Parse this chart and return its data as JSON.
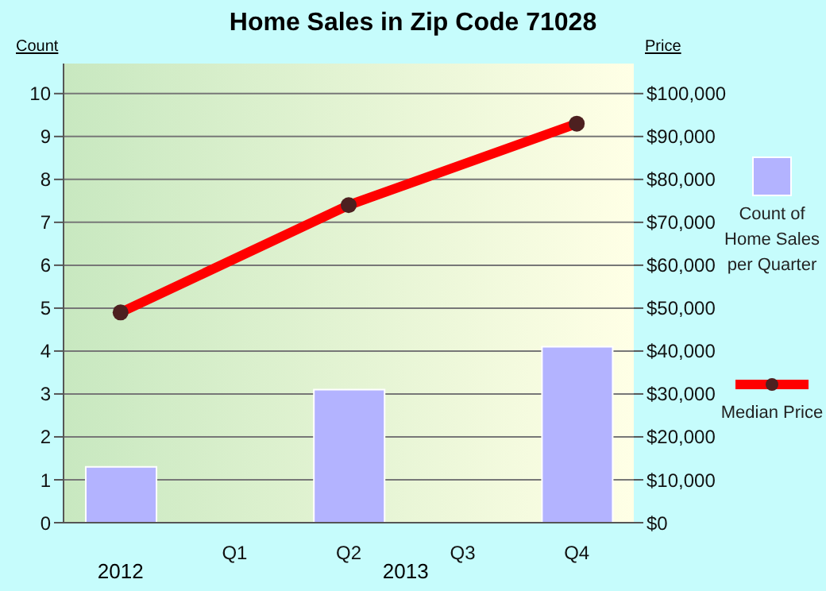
{
  "chart_data": {
    "type": "bar",
    "title": "Home Sales in Zip Code 71028",
    "ylabel": "Count",
    "y2label": "Price",
    "categories": [
      null,
      "Q1",
      "Q2",
      "Q3",
      "Q4"
    ],
    "annotations": [
      "2012",
      "2013"
    ],
    "series": [
      {
        "name": "Count of Home Sales per Quarter",
        "color": "#b3b3ff",
        "values": [
          1.3,
          null,
          3.1,
          null,
          4.1
        ]
      },
      {
        "name": "Median Price",
        "type": "line",
        "axis": "y2",
        "color": "#ff0000",
        "marker": "circle",
        "values": [
          49000,
          null,
          74000,
          null,
          93000
        ]
      }
    ],
    "ylim": [
      0,
      10.7
    ],
    "yticks": [
      0,
      1,
      2,
      3,
      4,
      5,
      6,
      7,
      8,
      9,
      10
    ],
    "y2lim": [
      0,
      107000
    ],
    "y2ticks": [
      {
        "value": 0,
        "label": "$0"
      },
      {
        "value": 10000,
        "label": "$10,000"
      },
      {
        "value": 20000,
        "label": "$20,000"
      },
      {
        "value": 30000,
        "label": "$30,000"
      },
      {
        "value": 40000,
        "label": "$40,000"
      },
      {
        "value": 50000,
        "label": "$50,000"
      },
      {
        "value": 60000,
        "label": "$60,000"
      },
      {
        "value": 70000,
        "label": "$70,000"
      },
      {
        "value": 80000,
        "label": "$80,000"
      },
      {
        "value": 90000,
        "label": "$90,000"
      },
      {
        "value": 100000,
        "label": "$100,000"
      }
    ],
    "grid": "y",
    "legend": "right"
  }
}
